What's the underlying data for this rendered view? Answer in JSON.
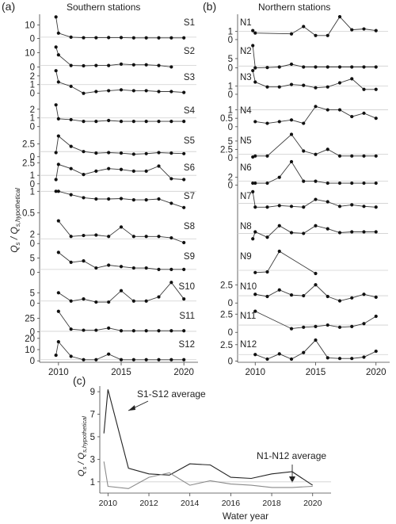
{
  "figure": {
    "panel_a_letter": "(a)",
    "panel_b_letter": "(b)",
    "panel_c_letter": "(c)",
    "panel_a_title": "Southern stations",
    "panel_b_title": "Northern stations",
    "panel_c_xlabel": "Water year",
    "panel_c_annotation_south": "S1-S12 average",
    "panel_c_annotation_north": "N1-N12 average"
  },
  "chart_data": [
    {
      "type": "line",
      "panel": "(a)",
      "title": "Southern stations",
      "ylabel": "Qs / Qs,hypothetical",
      "xlim": [
        2009,
        2021
      ],
      "x_ticks": [
        2010,
        2015,
        2020
      ],
      "subplots": [
        {
          "name": "S1",
          "yticks": [
            0,
            10
          ],
          "ylim": [
            -2,
            18
          ],
          "x": [
            2009.8,
            2010,
            2011,
            2012,
            2013,
            2014,
            2015,
            2016,
            2017,
            2018,
            2019,
            2020
          ],
          "y": [
            16,
            4,
            1,
            0.6,
            0.6,
            0.7,
            0.7,
            0.5,
            0.5,
            0.5,
            0.5,
            0.5
          ]
        },
        {
          "name": "S2",
          "yticks": [
            0,
            10
          ],
          "ylim": [
            -2,
            17
          ],
          "x": [
            2009.8,
            2010,
            2011,
            2012,
            2013,
            2014,
            2015,
            2016,
            2017,
            2018,
            2019
          ],
          "y": [
            14,
            8.5,
            1,
            0.8,
            1,
            1,
            2,
            1.5,
            1.5,
            1,
            0
          ]
        },
        {
          "name": "S3",
          "yticks": [
            0,
            1,
            2
          ],
          "ylim": [
            -0.3,
            2.8
          ],
          "x": [
            2009.8,
            2010,
            2011,
            2012,
            2013,
            2014,
            2015,
            2016,
            2017,
            2018,
            2019,
            2020
          ],
          "y": [
            2.6,
            1.3,
            0.8,
            0,
            0.2,
            0.3,
            0.4,
            0.3,
            0.3,
            0.2,
            0.2,
            0.1
          ]
        },
        {
          "name": "S4",
          "yticks": [
            0,
            1,
            2
          ],
          "ylim": [
            -0.3,
            2.8
          ],
          "x": [
            2009.8,
            2010,
            2011,
            2012,
            2013,
            2014,
            2015,
            2016,
            2017,
            2018,
            2019,
            2020
          ],
          "y": [
            2.5,
            0.9,
            0.8,
            0.6,
            0.6,
            0.7,
            0.6,
            0.6,
            0.6,
            0.6,
            0.6,
            0.6
          ]
        },
        {
          "name": "S5",
          "yticks": [
            0,
            2.5
          ],
          "ylim": [
            -0.5,
            4.7
          ],
          "x": [
            2009.8,
            2010,
            2011,
            2012,
            2013,
            2014,
            2015,
            2016,
            2017,
            2018,
            2019,
            2020
          ],
          "y": [
            0.8,
            4,
            2,
            1,
            0.7,
            0.8,
            0.7,
            0.5,
            0.6,
            0.8,
            0.7,
            0.6
          ]
        },
        {
          "name": "S6",
          "yticks": [
            0,
            1,
            2.5
          ],
          "ylim": [
            -0.3,
            2.9
          ],
          "x": [
            2009.8,
            2010,
            2011,
            2012,
            2013,
            2014,
            2015,
            2016,
            2017,
            2018,
            2019,
            2020
          ],
          "y": [
            0.5,
            2.3,
            1.8,
            1.1,
            1.5,
            1.8,
            1.7,
            1.5,
            1.5,
            2.1,
            0.6,
            0.5
          ]
        },
        {
          "name": "S7",
          "yticks": [
            1,
            0.5
          ],
          "ylim": [
            0.45,
            1.08
          ],
          "x": [
            2009.8,
            2010,
            2011,
            2012,
            2013,
            2014,
            2015,
            2016,
            2017,
            2018,
            2019,
            2020
          ],
          "y": [
            1,
            1,
            0.92,
            0.85,
            0.82,
            0.82,
            0.83,
            0.8,
            0.8,
            0.82,
            0.72,
            0.62
          ]
        },
        {
          "name": "S8",
          "yticks": [
            0,
            2
          ],
          "ylim": [
            -0.3,
            5.4
          ],
          "x": [
            2010,
            2011,
            2012,
            2013,
            2014,
            2015,
            2016,
            2017,
            2018,
            2019,
            2020
          ],
          "y": [
            4.8,
            1.5,
            1.7,
            1.8,
            1.5,
            3.5,
            1.5,
            1.5,
            1.5,
            1.2,
            0.2
          ]
        },
        {
          "name": "S9",
          "yticks": [
            0,
            5
          ],
          "ylim": [
            -1,
            8.5
          ],
          "x": [
            2010,
            2011,
            2012,
            2013,
            2014,
            2015,
            2016,
            2017,
            2018,
            2019,
            2020
          ],
          "y": [
            7,
            3.5,
            4,
            1.5,
            2.5,
            2,
            1.5,
            1.5,
            1,
            1,
            1
          ]
        },
        {
          "name": "S10",
          "yticks": [
            0,
            5
          ],
          "ylim": [
            -1,
            12
          ],
          "x": [
            2010,
            2011,
            2012,
            2013,
            2014,
            2015,
            2016,
            2017,
            2018,
            2019,
            2020
          ],
          "y": [
            5,
            1,
            2,
            0.5,
            0.5,
            6,
            1,
            1,
            3,
            10,
            2
          ]
        },
        {
          "name": "S11",
          "yticks": [
            0,
            25
          ],
          "ylim": [
            -5,
            45
          ],
          "x": [
            2010,
            2011,
            2012,
            2013,
            2014,
            2015,
            2016,
            2017,
            2018,
            2019,
            2020
          ],
          "y": [
            38,
            5,
            3,
            3,
            7,
            2,
            2,
            2,
            2,
            2,
            2
          ]
        },
        {
          "name": "S12",
          "yticks": [
            0,
            10,
            20
          ],
          "ylim": [
            -2,
            22
          ],
          "x": [
            2009.8,
            2010,
            2011,
            2012,
            2013,
            2014,
            2015,
            2016,
            2017,
            2018,
            2019,
            2020
          ],
          "y": [
            5,
            17,
            4,
            1,
            1,
            6,
            1,
            1,
            1,
            1,
            1,
            1
          ]
        }
      ]
    },
    {
      "type": "line",
      "panel": "(b)",
      "title": "Northern stations",
      "xlim": [
        2009,
        2021
      ],
      "x_ticks": [
        2010,
        2015,
        2020
      ],
      "subplots": [
        {
          "name": "N1",
          "yticks": [
            0,
            1
          ],
          "ylim": [
            -0.2,
            3.1
          ],
          "x": [
            2009.8,
            2010,
            2013,
            2014,
            2015,
            2016,
            2017,
            2018,
            2019,
            2020
          ],
          "y": [
            1.1,
            0.8,
            0.7,
            1.6,
            0.5,
            0.5,
            2.8,
            1.2,
            1.3,
            1.1
          ]
        },
        {
          "name": "N2",
          "yticks": [
            0,
            5
          ],
          "ylim": [
            -1,
            13.5
          ],
          "x": [
            2009.8,
            2010,
            2011,
            2012,
            2013,
            2014,
            2015,
            2016,
            2017,
            2018,
            2019,
            2020
          ],
          "y": [
            12,
            0,
            0.2,
            0.5,
            2,
            0.5,
            0.5,
            0.5,
            0.5,
            0.5,
            0.5,
            0.5
          ]
        },
        {
          "name": "N3",
          "yticks": [
            0,
            1
          ],
          "ylim": [
            -0.2,
            3.1
          ],
          "x": [
            2009.8,
            2010,
            2011,
            2012,
            2013,
            2014,
            2015,
            2016,
            2017,
            2018,
            2019,
            2020
          ],
          "y": [
            2.9,
            1.5,
            0.9,
            0.9,
            1.2,
            1.1,
            0.8,
            0.9,
            1.4,
            1.9,
            0.6,
            0.6
          ]
        },
        {
          "name": "N4",
          "yticks": [
            0,
            0.5,
            1
          ],
          "ylim": [
            -0.15,
            1.45
          ],
          "x": [
            2010,
            2011,
            2012,
            2013,
            2014,
            2015,
            2016,
            2017,
            2018,
            2019,
            2020
          ],
          "y": [
            0.3,
            0.2,
            0.3,
            0.4,
            0.2,
            1.2,
            1,
            1,
            0.6,
            0.8,
            0.5
          ]
        },
        {
          "name": "N5",
          "yticks": [
            0,
            2.5,
            5
          ],
          "ylim": [
            -0.5,
            7.6
          ],
          "x": [
            2009.8,
            2010,
            2011,
            2013,
            2014,
            2015,
            2016,
            2017,
            2018,
            2019,
            2020
          ],
          "y": [
            0.2,
            0.5,
            0.5,
            7,
            2,
            1,
            2.5,
            0.5,
            0.5,
            0.5,
            0.5
          ]
        },
        {
          "name": "N6",
          "yticks": [
            0,
            2
          ],
          "ylim": [
            -0.3,
            6.6
          ],
          "x": [
            2009.8,
            2010,
            2011,
            2012,
            2013,
            2014,
            2015,
            2016,
            2017,
            2018,
            2019,
            2020
          ],
          "y": [
            0.5,
            0.5,
            0.5,
            2,
            6,
            1,
            1,
            0.5,
            0.5,
            0.5,
            0.5,
            0.5
          ]
        },
        {
          "name": "N7",
          "yticks": [],
          "ylim": [
            -0.5,
            3
          ],
          "x": [
            2009.8,
            2010,
            2011,
            2012,
            2013,
            2014,
            2015,
            2016,
            2017,
            2018,
            2019,
            2020
          ],
          "y": [
            2.5,
            0.5,
            0.5,
            0.7,
            0.6,
            0.5,
            1.5,
            1.2,
            0.6,
            0.8,
            0.6,
            0.5
          ]
        },
        {
          "name": "N8",
          "yticks": [],
          "ylim": [
            -0.5,
            3
          ],
          "x": [
            2009.8,
            2010,
            2011,
            2012,
            2013,
            2014,
            2015,
            2016,
            2017,
            2018,
            2019,
            2020
          ],
          "y": [
            0.3,
            1.2,
            0.5,
            2,
            1.1,
            1,
            2,
            1.6,
            1.1,
            1.2,
            1.2,
            1.2
          ]
        },
        {
          "name": "N9",
          "yticks": [],
          "ylim": [
            -0.5,
            8
          ],
          "x": [
            2010,
            2011,
            2012,
            2015
          ],
          "y": [
            0.3,
            0.5,
            7,
            0
          ]
        },
        {
          "name": "N10",
          "yticks": [
            0,
            2.5
          ],
          "ylim": [
            -0.3,
            3.4
          ],
          "x": [
            2010,
            2011,
            2012,
            2013,
            2014,
            2015,
            2016,
            2017,
            2018,
            2019,
            2020
          ],
          "y": [
            1.2,
            0.9,
            1.8,
            1.1,
            1,
            2.5,
            0.9,
            0.3,
            0.7,
            1.2,
            0.8
          ]
        },
        {
          "name": "N11",
          "yticks": [
            0,
            2.5
          ],
          "ylim": [
            -0.3,
            3.4
          ],
          "x": [
            2010,
            2013,
            2014,
            2015,
            2016,
            2017,
            2018,
            2019,
            2020
          ],
          "y": [
            2.9,
            0.5,
            0.7,
            0.8,
            1,
            0.7,
            0.8,
            1.2,
            2.2
          ]
        },
        {
          "name": "N12",
          "yticks": [
            0,
            2.5
          ],
          "ylim": [
            -0.3,
            3.8
          ],
          "x": [
            2010,
            2011,
            2012,
            2013,
            2014,
            2015,
            2016,
            2017,
            2018,
            2019,
            2020
          ],
          "y": [
            1,
            0.3,
            1.1,
            0.3,
            1.3,
            3.2,
            0.5,
            0.4,
            0.4,
            0.6,
            1.5
          ]
        }
      ]
    },
    {
      "type": "line",
      "panel": "(c)",
      "xlabel": "Water year",
      "ylabel": "Qs / Qs,hypothetical",
      "xlim": [
        2009.6,
        2020.9
      ],
      "ylim": [
        0,
        9.5
      ],
      "x_ticks": [
        2010,
        2012,
        2014,
        2016,
        2018,
        2020
      ],
      "y_ticks": [
        1,
        3,
        5,
        7,
        9
      ],
      "x": [
        2009.8,
        2010,
        2011,
        2012,
        2013,
        2014,
        2015,
        2016,
        2017,
        2018,
        2019,
        2020
      ],
      "series": [
        {
          "name": "S1-S12 average",
          "color": "#222222",
          "values": [
            5.3,
            9.2,
            2.2,
            1.7,
            1.6,
            2.6,
            2.5,
            1.4,
            1.3,
            1.7,
            1.9,
            0.7
          ]
        },
        {
          "name": "N1-N12 average",
          "color": "#8a8a8a",
          "values": [
            2.8,
            0.6,
            0.4,
            1.4,
            1.8,
            0.7,
            1.1,
            0.8,
            0.7,
            0.5,
            0.5,
            0.6
          ]
        }
      ]
    }
  ]
}
